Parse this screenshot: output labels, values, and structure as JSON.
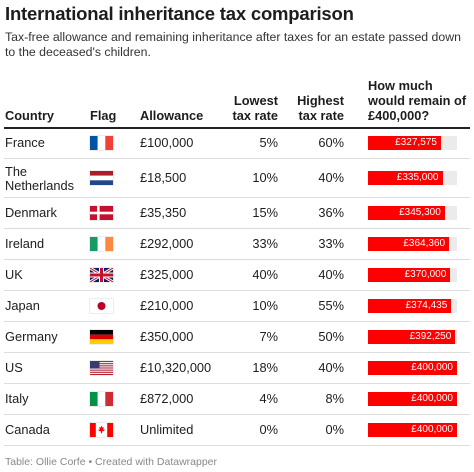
{
  "title": "International inheritance tax comparison",
  "subtitle": "Tax-free allowance and remaining inheritance after taxes for an estate passed down to the deceased's children.",
  "headers": {
    "country": "Country",
    "flag": "Flag",
    "allowance": "Allowance",
    "lowest_line1": "Lowest",
    "lowest_line2": "tax rate",
    "highest_line1": "Highest",
    "highest_line2": "tax rate",
    "remain_line1": "How much",
    "remain_line2": "would remain of",
    "remain_line3": "£400,000?"
  },
  "footer": "Table: Ollie Corfe • Created with Datawrapper",
  "colors": {
    "bar": "#ff0000",
    "bar_background": "#ebebeb"
  },
  "chart_data": {
    "type": "table",
    "bar_max": 400000,
    "rows": [
      {
        "country": "France",
        "flag": "france-flag-icon",
        "allowance": "£100,000",
        "lowest": "5%",
        "highest": "60%",
        "remain": 327575,
        "remain_label": "£327,575"
      },
      {
        "country": "The Netherlands",
        "flag": "netherlands-flag-icon",
        "allowance": "£18,500",
        "lowest": "10%",
        "highest": "40%",
        "remain": 335000,
        "remain_label": "£335,000"
      },
      {
        "country": "Denmark",
        "flag": "denmark-flag-icon",
        "allowance": "£35,350",
        "lowest": "15%",
        "highest": "36%",
        "remain": 345300,
        "remain_label": "£345,300"
      },
      {
        "country": "Ireland",
        "flag": "ireland-flag-icon",
        "allowance": "£292,000",
        "lowest": "33%",
        "highest": "33%",
        "remain": 364360,
        "remain_label": "£364,360"
      },
      {
        "country": "UK",
        "flag": "uk-flag-icon",
        "allowance": "£325,000",
        "lowest": "40%",
        "highest": "40%",
        "remain": 370000,
        "remain_label": "£370,000"
      },
      {
        "country": "Japan",
        "flag": "japan-flag-icon",
        "allowance": "£210,000",
        "lowest": "10%",
        "highest": "55%",
        "remain": 374435,
        "remain_label": "£374,435"
      },
      {
        "country": "Germany",
        "flag": "germany-flag-icon",
        "allowance": "£350,000",
        "lowest": "7%",
        "highest": "50%",
        "remain": 392250,
        "remain_label": "£392,250"
      },
      {
        "country": "US",
        "flag": "us-flag-icon",
        "allowance": "£10,320,000",
        "lowest": "18%",
        "highest": "40%",
        "remain": 400000,
        "remain_label": "£400,000"
      },
      {
        "country": "Italy",
        "flag": "italy-flag-icon",
        "allowance": "£872,000",
        "lowest": "4%",
        "highest": "8%",
        "remain": 400000,
        "remain_label": "£400,000"
      },
      {
        "country": "Canada",
        "flag": "canada-flag-icon",
        "allowance": "Unlimited",
        "lowest": "0%",
        "highest": "0%",
        "remain": 400000,
        "remain_label": "£400,000"
      }
    ]
  }
}
